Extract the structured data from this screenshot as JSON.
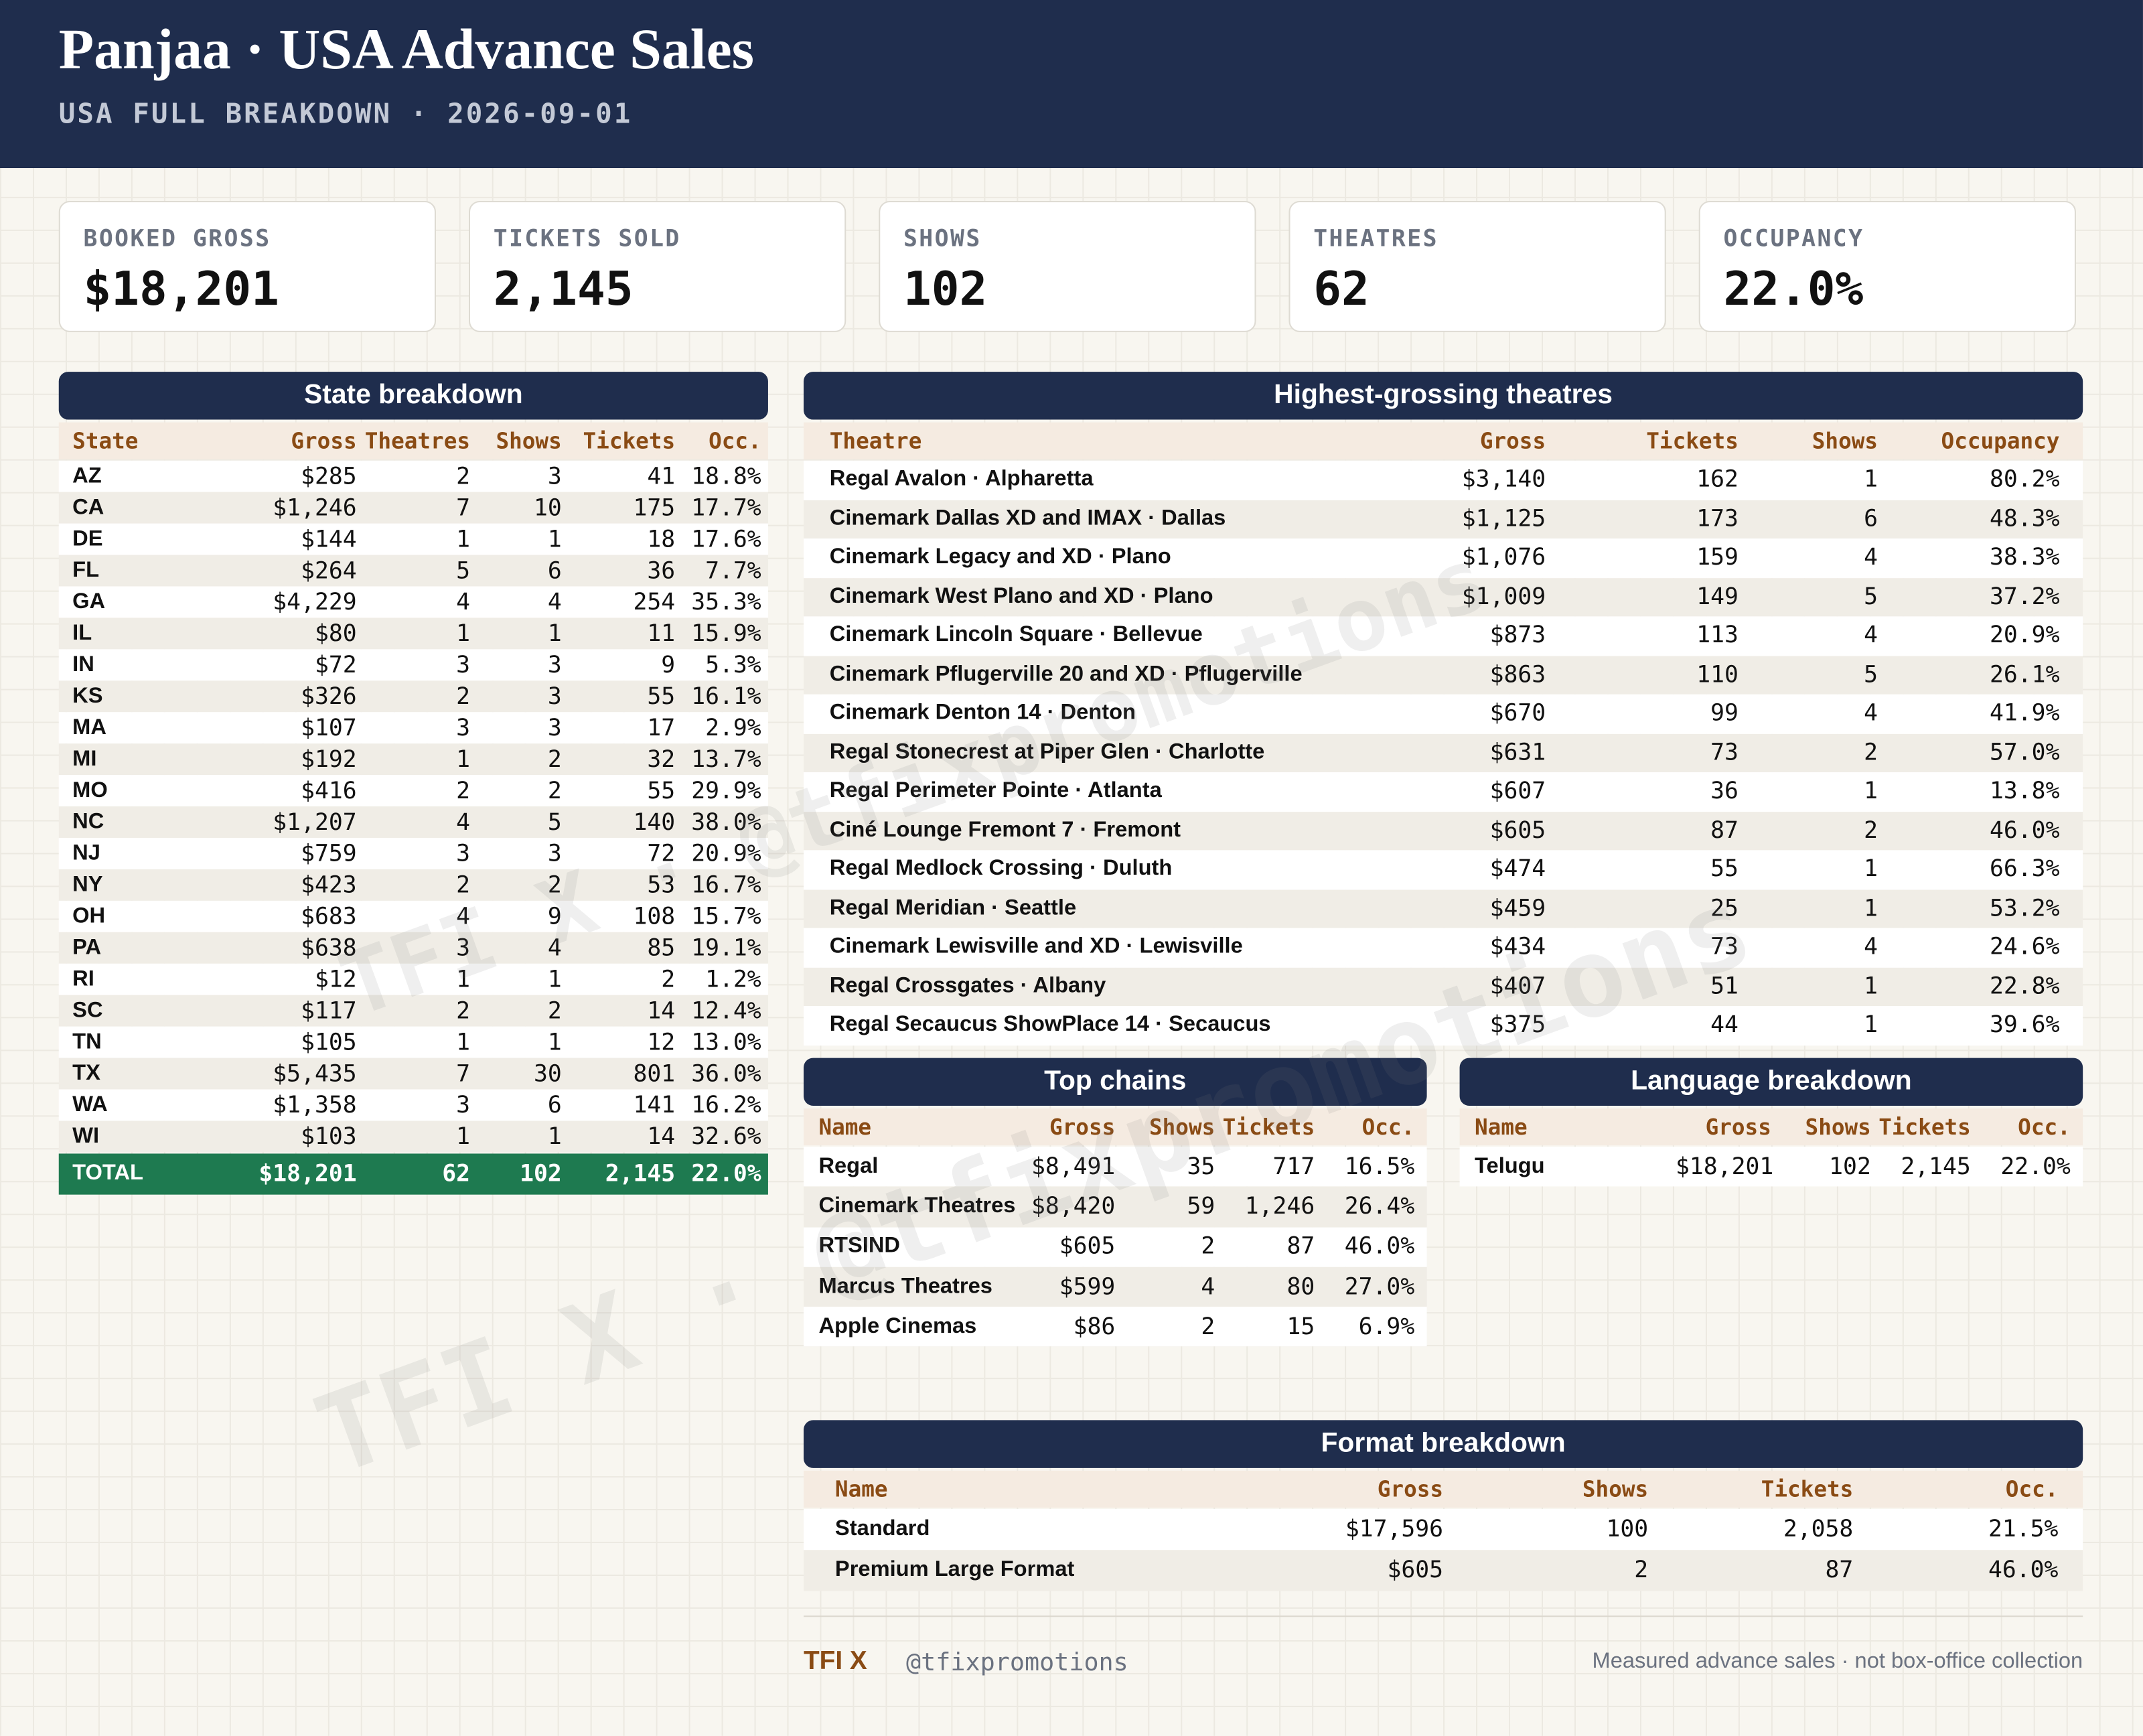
{
  "header": {
    "title": "Panjaa · USA Advance Sales",
    "subtitle": "USA FULL BREAKDOWN · 2026-09-01"
  },
  "kpis": [
    {
      "label": "BOOKED GROSS",
      "value": "$18,201"
    },
    {
      "label": "TICKETS SOLD",
      "value": "2,145"
    },
    {
      "label": "SHOWS",
      "value": "102"
    },
    {
      "label": "THEATRES",
      "value": "62"
    },
    {
      "label": "OCCUPANCY",
      "value": "22.0%"
    }
  ],
  "state": {
    "title": "State breakdown",
    "columns": [
      "State",
      "Gross",
      "Theatres",
      "Shows",
      "Tickets",
      "Occ."
    ],
    "rows": [
      [
        "AZ",
        "$285",
        "2",
        "3",
        "41",
        "18.8%"
      ],
      [
        "CA",
        "$1,246",
        "7",
        "10",
        "175",
        "17.7%"
      ],
      [
        "DE",
        "$144",
        "1",
        "1",
        "18",
        "17.6%"
      ],
      [
        "FL",
        "$264",
        "5",
        "6",
        "36",
        "7.7%"
      ],
      [
        "GA",
        "$4,229",
        "4",
        "4",
        "254",
        "35.3%"
      ],
      [
        "IL",
        "$80",
        "1",
        "1",
        "11",
        "15.9%"
      ],
      [
        "IN",
        "$72",
        "3",
        "3",
        "9",
        "5.3%"
      ],
      [
        "KS",
        "$326",
        "2",
        "3",
        "55",
        "16.1%"
      ],
      [
        "MA",
        "$107",
        "3",
        "3",
        "17",
        "2.9%"
      ],
      [
        "MI",
        "$192",
        "1",
        "2",
        "32",
        "13.7%"
      ],
      [
        "MO",
        "$416",
        "2",
        "2",
        "55",
        "29.9%"
      ],
      [
        "NC",
        "$1,207",
        "4",
        "5",
        "140",
        "38.0%"
      ],
      [
        "NJ",
        "$759",
        "3",
        "3",
        "72",
        "20.9%"
      ],
      [
        "NY",
        "$423",
        "2",
        "2",
        "53",
        "16.7%"
      ],
      [
        "OH",
        "$683",
        "4",
        "9",
        "108",
        "15.7%"
      ],
      [
        "PA",
        "$638",
        "3",
        "4",
        "85",
        "19.1%"
      ],
      [
        "RI",
        "$12",
        "1",
        "1",
        "2",
        "1.2%"
      ],
      [
        "SC",
        "$117",
        "2",
        "2",
        "14",
        "12.4%"
      ],
      [
        "TN",
        "$105",
        "1",
        "1",
        "12",
        "13.0%"
      ],
      [
        "TX",
        "$5,435",
        "7",
        "30",
        "801",
        "36.0%"
      ],
      [
        "WA",
        "$1,358",
        "3",
        "6",
        "141",
        "16.2%"
      ],
      [
        "WI",
        "$103",
        "1",
        "1",
        "14",
        "32.6%"
      ]
    ],
    "total": [
      "TOTAL",
      "$18,201",
      "62",
      "102",
      "2,145",
      "22.0%"
    ]
  },
  "theatres": {
    "title": "Highest-grossing theatres",
    "columns": [
      "Theatre",
      "Gross",
      "Tickets",
      "Shows",
      "Occupancy"
    ],
    "rows": [
      [
        "Regal Avalon · Alpharetta",
        "$3,140",
        "162",
        "1",
        "80.2%"
      ],
      [
        "Cinemark Dallas XD and IMAX · Dallas",
        "$1,125",
        "173",
        "6",
        "48.3%"
      ],
      [
        "Cinemark Legacy and XD · Plano",
        "$1,076",
        "159",
        "4",
        "38.3%"
      ],
      [
        "Cinemark West Plano and XD · Plano",
        "$1,009",
        "149",
        "5",
        "37.2%"
      ],
      [
        "Cinemark Lincoln Square · Bellevue",
        "$873",
        "113",
        "4",
        "20.9%"
      ],
      [
        "Cinemark Pflugerville 20 and XD · Pflugerville",
        "$863",
        "110",
        "5",
        "26.1%"
      ],
      [
        "Cinemark Denton 14 · Denton",
        "$670",
        "99",
        "4",
        "41.9%"
      ],
      [
        "Regal Stonecrest at Piper Glen · Charlotte",
        "$631",
        "73",
        "2",
        "57.0%"
      ],
      [
        "Regal Perimeter Pointe · Atlanta",
        "$607",
        "36",
        "1",
        "13.8%"
      ],
      [
        "Ciné Lounge Fremont 7 · Fremont",
        "$605",
        "87",
        "2",
        "46.0%"
      ],
      [
        "Regal Medlock Crossing · Duluth",
        "$474",
        "55",
        "1",
        "66.3%"
      ],
      [
        "Regal Meridian · Seattle",
        "$459",
        "25",
        "1",
        "53.2%"
      ],
      [
        "Cinemark Lewisville and XD · Lewisville",
        "$434",
        "73",
        "4",
        "24.6%"
      ],
      [
        "Regal Crossgates · Albany",
        "$407",
        "51",
        "1",
        "22.8%"
      ],
      [
        "Regal Secaucus ShowPlace 14 · Secaucus",
        "$375",
        "44",
        "1",
        "39.6%"
      ]
    ]
  },
  "chains": {
    "title": "Top chains",
    "columns": [
      "Name",
      "Gross",
      "Shows",
      "Tickets",
      "Occ."
    ],
    "rows": [
      [
        "Regal",
        "$8,491",
        "35",
        "717",
        "16.5%"
      ],
      [
        "Cinemark Theatres",
        "$8,420",
        "59",
        "1,246",
        "26.4%"
      ],
      [
        "RTSIND",
        "$605",
        "2",
        "87",
        "46.0%"
      ],
      [
        "Marcus Theatres",
        "$599",
        "4",
        "80",
        "27.0%"
      ],
      [
        "Apple Cinemas",
        "$86",
        "2",
        "15",
        "6.9%"
      ]
    ]
  },
  "languages": {
    "title": "Language breakdown",
    "columns": [
      "Name",
      "Gross",
      "Shows",
      "Tickets",
      "Occ."
    ],
    "rows": [
      [
        "Telugu",
        "$18,201",
        "102",
        "2,145",
        "22.0%"
      ]
    ]
  },
  "formats": {
    "title": "Format breakdown",
    "columns": [
      "Name",
      "Gross",
      "Shows",
      "Tickets",
      "Occ."
    ],
    "rows": [
      [
        "Standard",
        "$17,596",
        "100",
        "2,058",
        "21.5%"
      ],
      [
        "Premium Large Format",
        "$605",
        "2",
        "87",
        "46.0%"
      ]
    ]
  },
  "watermark": "TFI X · @tfixpromotions",
  "footer": {
    "brand": "TFI X",
    "handle": "@tfixpromotions",
    "note": "Measured advance sales · not box-office collection"
  }
}
